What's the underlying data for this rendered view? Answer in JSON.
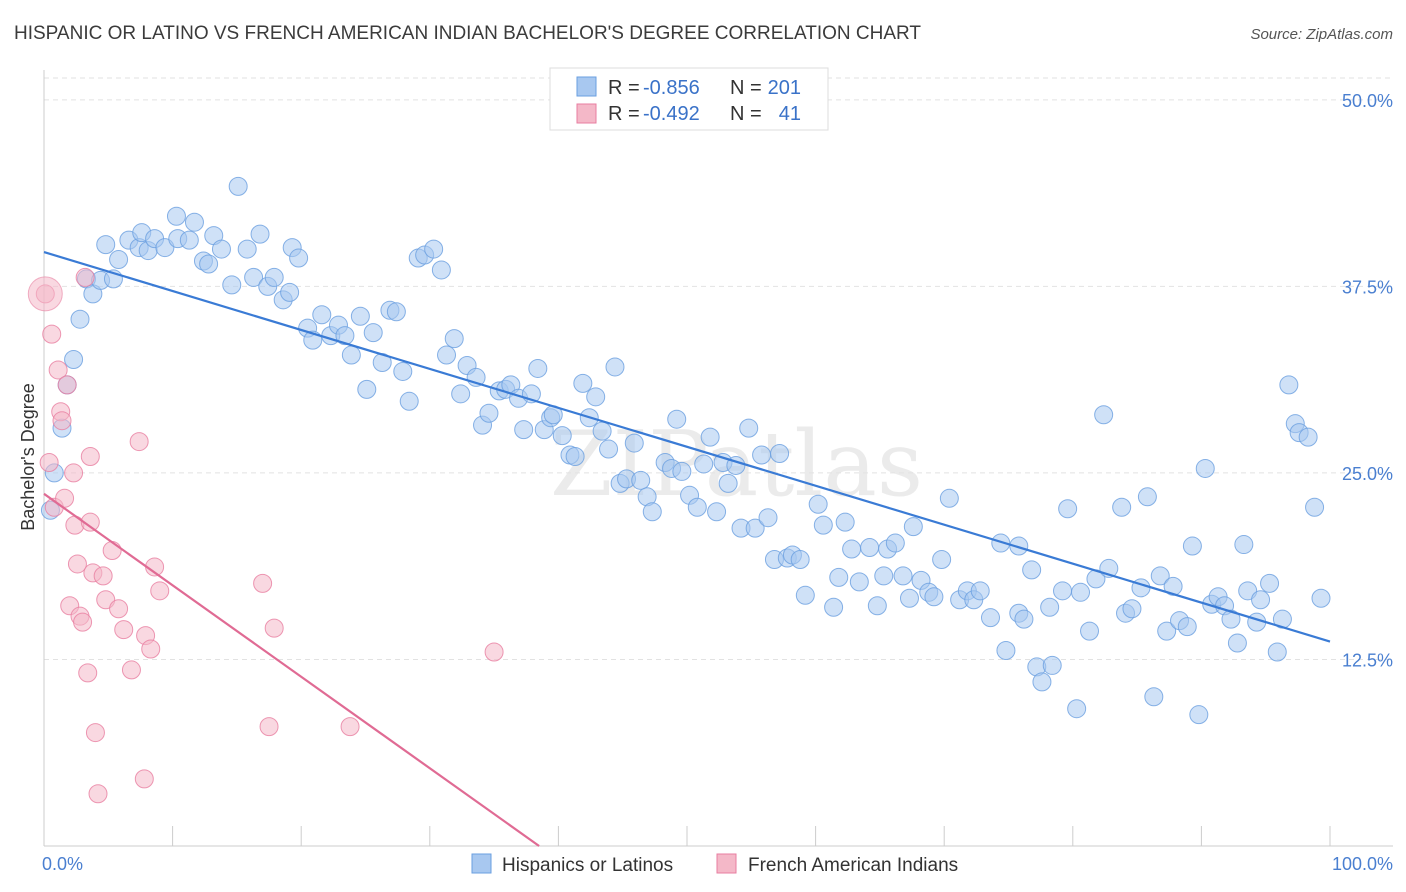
{
  "header": {
    "title": "HISPANIC OR LATINO VS FRENCH AMERICAN INDIAN BACHELOR'S DEGREE CORRELATION CHART",
    "source": "Source: ZipAtlas.com"
  },
  "watermark": "ZIPatlas",
  "legend_box": {
    "rows": [
      {
        "r_label": "R =",
        "r_value": "-0.856",
        "n_label": "N =",
        "n_value": "201",
        "color": "#a8c8f0"
      },
      {
        "r_label": "R =",
        "r_value": "-0.492",
        "n_label": "N =",
        "n_value": "41",
        "color": "#f4b8c8"
      }
    ]
  },
  "bottom_legend": [
    {
      "label": "Hispanics or Latinos",
      "color": "#a8c8f0"
    },
    {
      "label": "French American Indians",
      "color": "#f4b8c8"
    }
  ],
  "chart_data": {
    "type": "scatter",
    "title": "HISPANIC OR LATINO VS FRENCH AMERICAN INDIAN BACHELOR'S DEGREE CORRELATION CHART",
    "xlabel": "",
    "ylabel": "Bachelor's Degree",
    "xlim": [
      0,
      100
    ],
    "ylim": [
      0,
      52
    ],
    "x_tick_labels": [
      "0.0%",
      "100.0%"
    ],
    "y_ticks": [
      12.5,
      25.0,
      37.5,
      50.0
    ],
    "y_tick_labels": [
      "12.5%",
      "25.0%",
      "37.5%",
      "50.0%"
    ],
    "grid": true,
    "legend_position": "top-center",
    "series": [
      {
        "name": "Hispanics or Latinos",
        "color": "#6a9fe0",
        "fill": "#a8c8f0",
        "trend": {
          "x": [
            0,
            100
          ],
          "y": [
            39.8,
            13.7
          ]
        },
        "points": [
          [
            0.5,
            22.5
          ],
          [
            0.8,
            25
          ],
          [
            1.4,
            28
          ],
          [
            1.8,
            30.9
          ],
          [
            2.3,
            32.6
          ],
          [
            2.8,
            35.3
          ],
          [
            3.3,
            38
          ],
          [
            3.8,
            37
          ],
          [
            4.4,
            37.9
          ],
          [
            5.4,
            38
          ],
          [
            4.8,
            40.3
          ],
          [
            5.8,
            39.3
          ],
          [
            6.6,
            40.6
          ],
          [
            7.4,
            40.1
          ],
          [
            7.6,
            41.1
          ],
          [
            8.1,
            39.9
          ],
          [
            8.6,
            40.7
          ],
          [
            9.4,
            40.1
          ],
          [
            10.4,
            40.7
          ],
          [
            10.3,
            42.2
          ],
          [
            11.3,
            40.6
          ],
          [
            11.7,
            41.8
          ],
          [
            12.4,
            39.2
          ],
          [
            12.8,
            39
          ],
          [
            13.2,
            40.9
          ],
          [
            13.8,
            40
          ],
          [
            14.6,
            37.6
          ],
          [
            15.1,
            44.2
          ],
          [
            15.8,
            40
          ],
          [
            16.3,
            38.1
          ],
          [
            16.8,
            41
          ],
          [
            17.4,
            37.5
          ],
          [
            17.9,
            38.1
          ],
          [
            18.6,
            36.6
          ],
          [
            19.1,
            37.1
          ],
          [
            19.3,
            40.1
          ],
          [
            19.8,
            39.4
          ],
          [
            20.5,
            34.7
          ],
          [
            20.9,
            33.9
          ],
          [
            21.6,
            35.6
          ],
          [
            22.3,
            34.2
          ],
          [
            22.9,
            34.9
          ],
          [
            23.4,
            34.2
          ],
          [
            23.9,
            32.9
          ],
          [
            24.6,
            35.5
          ],
          [
            25.1,
            30.6
          ],
          [
            25.6,
            34.4
          ],
          [
            26.3,
            32.4
          ],
          [
            26.9,
            35.9
          ],
          [
            27.4,
            35.8
          ],
          [
            27.9,
            31.8
          ],
          [
            28.4,
            29.8
          ],
          [
            29.1,
            39.4
          ],
          [
            29.6,
            39.6
          ],
          [
            30.3,
            40
          ],
          [
            30.9,
            38.6
          ],
          [
            31.3,
            32.9
          ],
          [
            31.9,
            34
          ],
          [
            32.4,
            30.3
          ],
          [
            32.9,
            32.2
          ],
          [
            33.6,
            31.4
          ],
          [
            34.1,
            28.2
          ],
          [
            34.6,
            29
          ],
          [
            35.4,
            30.5
          ],
          [
            35.9,
            30.6
          ],
          [
            36.3,
            30.9
          ],
          [
            36.9,
            30
          ],
          [
            37.3,
            27.9
          ],
          [
            37.9,
            30.3
          ],
          [
            38.4,
            32
          ],
          [
            38.9,
            27.9
          ],
          [
            39.4,
            28.7
          ],
          [
            39.6,
            28.9
          ],
          [
            40.3,
            27.5
          ],
          [
            40.9,
            26.2
          ],
          [
            41.3,
            26.1
          ],
          [
            41.9,
            31
          ],
          [
            42.4,
            28.7
          ],
          [
            42.9,
            30.1
          ],
          [
            43.4,
            27.8
          ],
          [
            43.9,
            26.6
          ],
          [
            44.4,
            32.1
          ],
          [
            44.8,
            24.3
          ],
          [
            45.3,
            24.6
          ],
          [
            45.9,
            27
          ],
          [
            46.4,
            24.5
          ],
          [
            46.9,
            23.4
          ],
          [
            47.3,
            22.4
          ],
          [
            48.3,
            25.7
          ],
          [
            48.8,
            25.3
          ],
          [
            49.2,
            28.6
          ],
          [
            49.6,
            25.1
          ],
          [
            50.2,
            23.5
          ],
          [
            50.8,
            22.7
          ],
          [
            51.3,
            25.6
          ],
          [
            51.8,
            27.4
          ],
          [
            52.3,
            22.4
          ],
          [
            52.8,
            25.7
          ],
          [
            53.2,
            24.3
          ],
          [
            53.8,
            25.5
          ],
          [
            54.2,
            21.3
          ],
          [
            54.8,
            28
          ],
          [
            55.3,
            21.3
          ],
          [
            55.8,
            26.2
          ],
          [
            56.3,
            22
          ],
          [
            56.8,
            19.2
          ],
          [
            57.2,
            26.3
          ],
          [
            57.8,
            19.3
          ],
          [
            58.2,
            19.5
          ],
          [
            58.8,
            19.2
          ],
          [
            59.2,
            16.8
          ],
          [
            60.2,
            22.9
          ],
          [
            60.6,
            21.5
          ],
          [
            61.4,
            16
          ],
          [
            61.8,
            18
          ],
          [
            62.3,
            21.7
          ],
          [
            62.8,
            19.9
          ],
          [
            63.4,
            17.7
          ],
          [
            64.2,
            20
          ],
          [
            64.8,
            16.1
          ],
          [
            65.3,
            18.1
          ],
          [
            65.6,
            19.9
          ],
          [
            66.2,
            20.3
          ],
          [
            66.8,
            18.1
          ],
          [
            67.3,
            16.6
          ],
          [
            67.6,
            21.4
          ],
          [
            68.2,
            17.8
          ],
          [
            68.8,
            17
          ],
          [
            69.2,
            16.7
          ],
          [
            69.8,
            19.2
          ],
          [
            70.4,
            23.3
          ],
          [
            71.2,
            16.5
          ],
          [
            71.8,
            17.1
          ],
          [
            72.3,
            16.5
          ],
          [
            72.8,
            17.1
          ],
          [
            73.6,
            15.3
          ],
          [
            74.4,
            20.3
          ],
          [
            74.8,
            13.1
          ],
          [
            75.8,
            20.1
          ],
          [
            75.8,
            15.6
          ],
          [
            76.2,
            15.2
          ],
          [
            76.8,
            18.5
          ],
          [
            77.2,
            12
          ],
          [
            77.6,
            11
          ],
          [
            78.2,
            16
          ],
          [
            78.4,
            12.1
          ],
          [
            79.2,
            17.1
          ],
          [
            79.6,
            22.6
          ],
          [
            80.3,
            9.2
          ],
          [
            80.6,
            17
          ],
          [
            81.3,
            14.4
          ],
          [
            81.8,
            17.9
          ],
          [
            82.4,
            28.9
          ],
          [
            82.8,
            18.6
          ],
          [
            83.8,
            22.7
          ],
          [
            84.1,
            15.6
          ],
          [
            84.6,
            15.9
          ],
          [
            85.3,
            17.3
          ],
          [
            85.8,
            23.4
          ],
          [
            86.3,
            10
          ],
          [
            86.8,
            18.1
          ],
          [
            87.3,
            14.4
          ],
          [
            87.8,
            17.4
          ],
          [
            88.3,
            15.1
          ],
          [
            88.9,
            14.7
          ],
          [
            89.3,
            20.1
          ],
          [
            89.8,
            8.8
          ],
          [
            90.3,
            25.3
          ],
          [
            90.8,
            16.2
          ],
          [
            91.3,
            16.7
          ],
          [
            91.8,
            16.1
          ],
          [
            92.3,
            15.2
          ],
          [
            92.8,
            13.6
          ],
          [
            93.3,
            20.2
          ],
          [
            93.6,
            17.1
          ],
          [
            94.3,
            15
          ],
          [
            94.6,
            16.5
          ],
          [
            95.3,
            17.6
          ],
          [
            95.9,
            13
          ],
          [
            96.3,
            15.2
          ],
          [
            97.3,
            28.3
          ],
          [
            97.6,
            27.7
          ],
          [
            96.8,
            30.9
          ],
          [
            98.3,
            27.4
          ],
          [
            98.8,
            22.7
          ],
          [
            99.3,
            16.6
          ]
        ]
      },
      {
        "name": "French American Indians",
        "color": "#e87ea0",
        "fill": "#f4b8c8",
        "trend": {
          "x": [
            0,
            38.5
          ],
          "y": [
            23.6,
            0
          ]
        },
        "points": [
          [
            0.1,
            37
          ],
          [
            0.4,
            25.7
          ],
          [
            0.6,
            34.3
          ],
          [
            0.8,
            22.7
          ],
          [
            1.1,
            31.9
          ],
          [
            1.3,
            29.1
          ],
          [
            1.4,
            28.5
          ],
          [
            1.6,
            23.3
          ],
          [
            1.8,
            30.9
          ],
          [
            2,
            16.1
          ],
          [
            2.3,
            25
          ],
          [
            2.4,
            21.5
          ],
          [
            2.6,
            18.9
          ],
          [
            2.8,
            15.4
          ],
          [
            3,
            15
          ],
          [
            3.2,
            38.1
          ],
          [
            3.4,
            11.6
          ],
          [
            3.6,
            21.7
          ],
          [
            3.6,
            26.1
          ],
          [
            3.8,
            18.3
          ],
          [
            4,
            7.6
          ],
          [
            4.2,
            3.5
          ],
          [
            4.6,
            18.1
          ],
          [
            4.8,
            16.5
          ],
          [
            5.3,
            19.8
          ],
          [
            5.8,
            15.9
          ],
          [
            6.2,
            14.5
          ],
          [
            6.8,
            11.8
          ],
          [
            7.4,
            27.1
          ],
          [
            7.8,
            4.5
          ],
          [
            7.9,
            14.1
          ],
          [
            8.3,
            13.2
          ],
          [
            8.6,
            18.7
          ],
          [
            9,
            17.1
          ],
          [
            17,
            17.6
          ],
          [
            17.5,
            8
          ],
          [
            17.9,
            14.6
          ],
          [
            23.8,
            8
          ],
          [
            35,
            13
          ]
        ]
      }
    ]
  }
}
